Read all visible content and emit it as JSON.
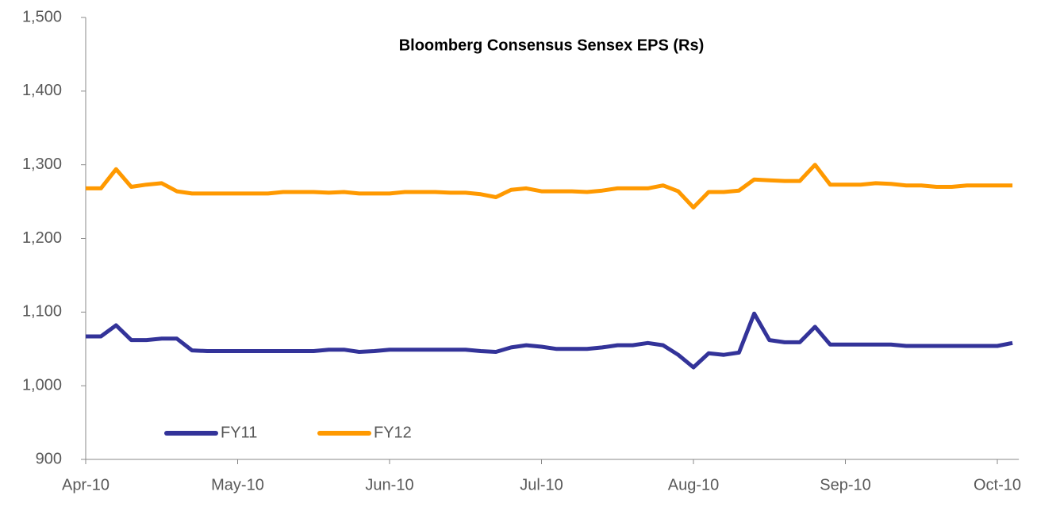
{
  "chart_data": {
    "type": "line",
    "title": "Bloomberg Consensus Sensex EPS (Rs)",
    "categories": [
      "Apr-10",
      null,
      null,
      null,
      null,
      null,
      null,
      null,
      null,
      null,
      "May-10",
      null,
      null,
      null,
      null,
      null,
      null,
      null,
      null,
      null,
      "Jun-10",
      null,
      null,
      null,
      null,
      null,
      null,
      null,
      null,
      null,
      "Jul-10",
      null,
      null,
      null,
      null,
      null,
      null,
      null,
      null,
      null,
      "Aug-10",
      null,
      null,
      null,
      null,
      null,
      null,
      null,
      null,
      null,
      "Sep-10",
      null,
      null,
      null,
      null,
      null,
      null,
      null,
      null,
      null,
      "Oct-10",
      null
    ],
    "series": [
      {
        "name": "FY11",
        "color": "#333399",
        "values": [
          1067,
          1067,
          1082,
          1062,
          1062,
          1064,
          1064,
          1048,
          1047,
          1047,
          1047,
          1047,
          1047,
          1047,
          1047,
          1047,
          1049,
          1049,
          1046,
          1047,
          1049,
          1049,
          1049,
          1049,
          1049,
          1049,
          1047,
          1046,
          1052,
          1055,
          1053,
          1050,
          1050,
          1050,
          1052,
          1055,
          1055,
          1058,
          1055,
          1042,
          1025,
          1044,
          1042,
          1045,
          1098,
          1062,
          1059,
          1059,
          1080,
          1056,
          1056,
          1056,
          1056,
          1056,
          1054,
          1054,
          1054,
          1054,
          1054,
          1054,
          1054,
          1058
        ]
      },
      {
        "name": "FY12",
        "color": "#ff9900",
        "values": [
          1268,
          1268,
          1294,
          1270,
          1273,
          1275,
          1264,
          1261,
          1261,
          1261,
          1261,
          1261,
          1261,
          1263,
          1263,
          1263,
          1262,
          1263,
          1261,
          1261,
          1261,
          1263,
          1263,
          1263,
          1262,
          1262,
          1260,
          1256,
          1266,
          1268,
          1264,
          1264,
          1264,
          1263,
          1265,
          1268,
          1268,
          1268,
          1272,
          1264,
          1242,
          1263,
          1263,
          1265,
          1280,
          1279,
          1278,
          1278,
          1300,
          1273,
          1273,
          1273,
          1275,
          1274,
          1272,
          1272,
          1270,
          1270,
          1272,
          1272,
          1272,
          1272
        ]
      }
    ],
    "ylim": [
      900,
      1500
    ],
    "yticks": [
      900,
      {
        "value": 1000,
        "label": "1,000"
      },
      {
        "value": 1100,
        "label": "1,100"
      },
      {
        "value": 1200,
        "label": "1,200"
      },
      {
        "value": 1300,
        "label": "1,300"
      },
      {
        "value": 1400,
        "label": "1,400"
      },
      {
        "value": 1500,
        "label": "1,500"
      }
    ],
    "grid": false,
    "legend": "lower left"
  }
}
